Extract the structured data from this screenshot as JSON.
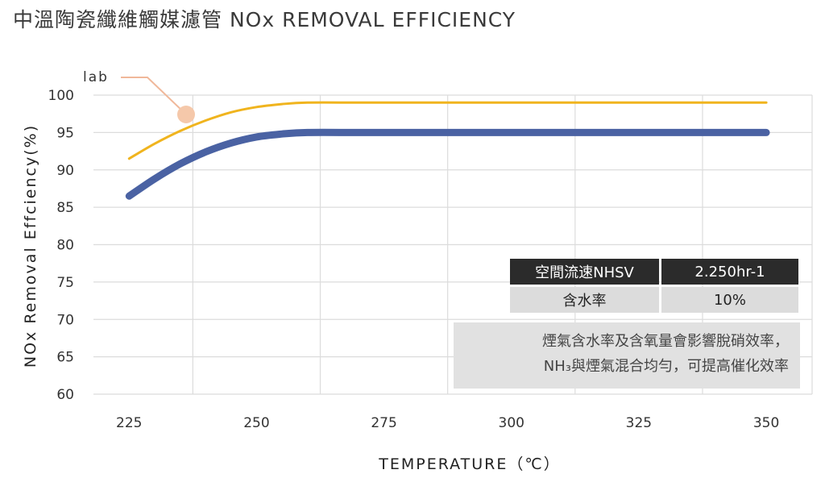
{
  "title": "中溫陶瓷纖維觸媒濾管 NOx REMOVAL EFFICIENCY",
  "chart_data": {
    "type": "line",
    "xlabel": "TEMPERATURE（℃）",
    "ylabel": "NOx Removal Effciency(%)",
    "x_ticks": [
      "225",
      "250",
      "275",
      "300",
      "325",
      "350"
    ],
    "y_ticks": [
      "100",
      "95",
      "90",
      "85",
      "80",
      "75",
      "70",
      "65",
      "60"
    ],
    "xlim": [
      218,
      359
    ],
    "ylim": [
      60,
      100
    ],
    "grid": true,
    "series": [
      {
        "name": "lab",
        "color": "#f0b41e",
        "x": [
          225,
          230,
          235,
          240,
          245,
          250,
          255,
          260,
          270,
          280,
          300,
          325,
          350
        ],
        "y": [
          91.5,
          93.5,
          95.2,
          96.6,
          97.7,
          98.4,
          98.8,
          99.0,
          99.0,
          99.0,
          99.0,
          99.0,
          99.0
        ]
      },
      {
        "name": "",
        "color": "#4a62a3",
        "x": [
          225,
          230,
          235,
          240,
          245,
          250,
          255,
          260,
          270,
          280,
          300,
          325,
          350
        ],
        "y": [
          86.5,
          88.8,
          90.8,
          92.4,
          93.6,
          94.4,
          94.8,
          95.0,
          95.0,
          95.0,
          95.0,
          95.0,
          95.0
        ]
      }
    ],
    "annotation": {
      "text": "lab",
      "marker_color": "#f5c8aa",
      "line_color": "#f0b89a"
    }
  },
  "table": {
    "rows": [
      [
        "空間流速NHSV",
        "2.250hr-1"
      ],
      [
        "含水率",
        "10%"
      ]
    ]
  },
  "note": {
    "lines": [
      "煙氣含水率及含氧量會影響脫硝效率，",
      "NH₃與煙氣混合均勻，可提高催化效率"
    ]
  }
}
